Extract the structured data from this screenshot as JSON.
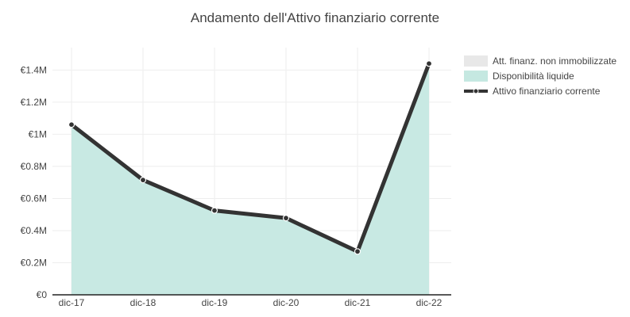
{
  "chart_data": {
    "type": "area",
    "title": "Andamento dell'Attivo finanziario corrente",
    "categories": [
      "dic-17",
      "dic-18",
      "dic-19",
      "dic-20",
      "dic-21",
      "dic-22"
    ],
    "series": [
      {
        "name": "Att. finanz. non immobilizzate",
        "kind": "area",
        "color": "#e8e8e8",
        "values": [
          0,
          0,
          0,
          0,
          0,
          0
        ]
      },
      {
        "name": "Disponibilità liquide",
        "kind": "area",
        "color": "#c5e8e1",
        "values": [
          1060000,
          715000,
          525000,
          478000,
          270000,
          1440000
        ]
      },
      {
        "name": "Attivo finanziario corrente",
        "kind": "line",
        "color": "#333333",
        "values": [
          1060000,
          715000,
          525000,
          478000,
          270000,
          1440000
        ]
      }
    ],
    "y_ticks": [
      0,
      200000,
      400000,
      600000,
      800000,
      1000000,
      1200000,
      1400000
    ],
    "y_tick_labels": [
      "€0",
      "€0.2M",
      "€0.4M",
      "€0.6M",
      "€0.8M",
      "€1M",
      "€1.2M",
      "€1.4M"
    ],
    "ylim": [
      0,
      1540000
    ],
    "grid": true,
    "legend_position": "top-right"
  }
}
